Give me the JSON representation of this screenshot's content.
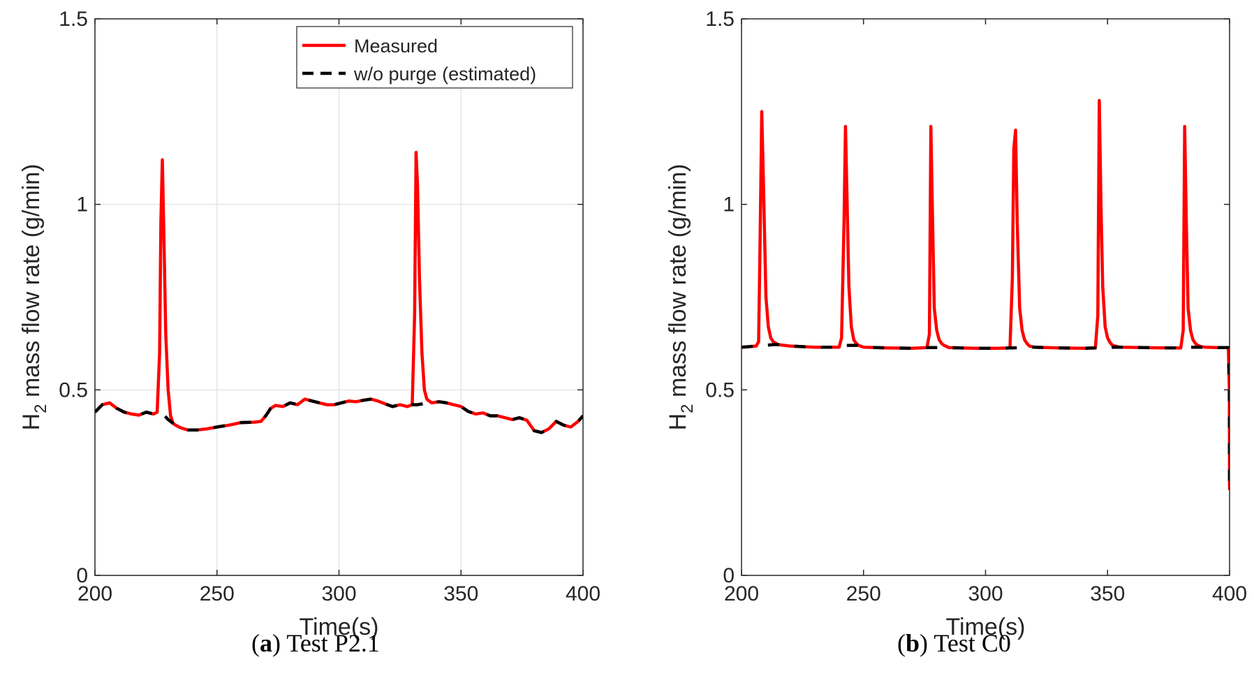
{
  "chart_data": [
    {
      "type": "line",
      "caption": {
        "letter": "a",
        "text": "Test P2.1"
      },
      "xlabel": "Time(s)",
      "ylabel": {
        "prefix": "H",
        "subscript": "2",
        "rest": " mass flow rate (g/min)"
      },
      "xlim": [
        200,
        400
      ],
      "ylim": [
        0,
        1.5
      ],
      "xticks": [
        "200",
        "250",
        "300",
        "350",
        "400"
      ],
      "yticks": [
        "0",
        "0.5",
        "1",
        "1.5"
      ],
      "grid": true,
      "legend_position": "top-right",
      "series": [
        {
          "name": "Measured",
          "color": "#ff0000",
          "style": "solid",
          "x": [
            200,
            203,
            206,
            209,
            212,
            215,
            218,
            221,
            224,
            225.5,
            226.5,
            227,
            227.6,
            228.3,
            229,
            230,
            231,
            232,
            233,
            235,
            238,
            242,
            246,
            250,
            255,
            260,
            265,
            268,
            270,
            272,
            274,
            277,
            280,
            283,
            286,
            289,
            292,
            295,
            298,
            301,
            304,
            307,
            310,
            313,
            316,
            319,
            322,
            325,
            328,
            330,
            331,
            331.6,
            332.2,
            333,
            334,
            335,
            336,
            337,
            338,
            341,
            344,
            347,
            350,
            353,
            356,
            359,
            362,
            365,
            368,
            371,
            374,
            377,
            380,
            383,
            386,
            389,
            392,
            395,
            398,
            400
          ],
          "y": [
            0.44,
            0.46,
            0.465,
            0.45,
            0.44,
            0.435,
            0.432,
            0.44,
            0.435,
            0.44,
            0.6,
            0.95,
            1.12,
            0.9,
            0.65,
            0.5,
            0.43,
            0.41,
            0.405,
            0.398,
            0.392,
            0.392,
            0.395,
            0.4,
            0.405,
            0.412,
            0.413,
            0.415,
            0.43,
            0.45,
            0.458,
            0.455,
            0.465,
            0.46,
            0.475,
            0.47,
            0.465,
            0.46,
            0.46,
            0.465,
            0.47,
            0.468,
            0.472,
            0.475,
            0.47,
            0.462,
            0.455,
            0.46,
            0.455,
            0.46,
            0.7,
            1.14,
            1.05,
            0.8,
            0.6,
            0.5,
            0.475,
            0.47,
            0.465,
            0.468,
            0.465,
            0.46,
            0.455,
            0.442,
            0.435,
            0.438,
            0.43,
            0.43,
            0.425,
            0.42,
            0.425,
            0.418,
            0.39,
            0.385,
            0.395,
            0.415,
            0.405,
            0.4,
            0.415,
            0.43
          ]
        },
        {
          "name": "w/o purge (estimated)",
          "color": "#000000",
          "style": "dashed",
          "x": [
            200,
            203,
            206,
            209,
            212,
            215,
            218,
            221,
            224,
            226,
            226.5,
            227.6,
            230,
            232,
            233,
            235,
            238,
            242,
            246,
            250,
            255,
            260,
            265,
            268,
            270,
            272,
            274,
            277,
            280,
            283,
            286,
            289,
            292,
            295,
            298,
            301,
            304,
            307,
            310,
            313,
            316,
            319,
            322,
            325,
            328,
            330,
            332,
            334,
            336,
            337,
            338,
            341,
            344,
            347,
            350,
            353,
            356,
            359,
            362,
            365,
            368,
            371,
            374,
            377,
            380,
            383,
            386,
            389,
            392,
            395,
            398,
            400
          ],
          "y": [
            0.44,
            0.46,
            0.465,
            0.45,
            0.44,
            0.435,
            0.432,
            0.44,
            0.435,
            0.44,
            0.437,
            0.437,
            0.42,
            0.41,
            0.405,
            0.398,
            0.392,
            0.392,
            0.395,
            0.4,
            0.405,
            0.412,
            0.413,
            0.415,
            0.43,
            0.45,
            0.458,
            0.455,
            0.465,
            0.46,
            0.475,
            0.47,
            0.465,
            0.46,
            0.46,
            0.465,
            0.47,
            0.468,
            0.472,
            0.475,
            0.47,
            0.462,
            0.455,
            0.46,
            0.455,
            0.46,
            0.46,
            0.462,
            0.465,
            0.47,
            0.465,
            0.468,
            0.465,
            0.46,
            0.455,
            0.442,
            0.435,
            0.438,
            0.43,
            0.43,
            0.425,
            0.42,
            0.425,
            0.418,
            0.39,
            0.385,
            0.395,
            0.415,
            0.405,
            0.4,
            0.415,
            0.43
          ]
        }
      ]
    },
    {
      "type": "line",
      "caption": {
        "letter": "b",
        "text": "Test C0"
      },
      "xlabel": "Time(s)",
      "ylabel": {
        "prefix": "H",
        "subscript": "2",
        "rest": " mass flow rate (g/min)"
      },
      "xlim": [
        200,
        400
      ],
      "ylim": [
        0,
        1.5
      ],
      "xticks": [
        "200",
        "250",
        "300",
        "350",
        "400"
      ],
      "yticks": [
        "0",
        "0.5",
        "1",
        "1.5"
      ],
      "grid": false,
      "series": [
        {
          "name": "Measured",
          "color": "#ff0000",
          "style": "solid",
          "x": [
            200,
            206,
            207,
            207.6,
            208.3,
            209,
            210,
            211,
            212,
            213,
            215,
            220,
            230,
            240,
            241,
            242,
            242.6,
            243.3,
            244,
            245,
            246,
            247,
            248,
            250,
            260,
            270,
            276,
            277,
            277.6,
            278.3,
            279,
            280,
            281,
            282,
            283,
            285,
            295,
            305,
            310,
            311,
            311.6,
            312.3,
            313,
            314,
            315,
            316,
            317,
            318,
            320,
            330,
            340,
            345,
            346,
            346.6,
            347.3,
            348,
            349,
            350,
            351,
            352,
            353,
            355,
            365,
            375,
            380,
            381,
            381.6,
            382.3,
            383,
            384,
            385,
            386,
            387,
            388,
            390,
            395,
            399.5,
            399.9,
            400
          ],
          "y": [
            0.615,
            0.618,
            0.63,
            0.9,
            1.25,
            1.05,
            0.75,
            0.67,
            0.64,
            0.63,
            0.622,
            0.618,
            0.615,
            0.615,
            0.64,
            0.95,
            1.21,
            1.0,
            0.78,
            0.67,
            0.635,
            0.625,
            0.62,
            0.615,
            0.613,
            0.612,
            0.614,
            0.65,
            1.21,
            0.95,
            0.72,
            0.66,
            0.635,
            0.625,
            0.62,
            0.614,
            0.612,
            0.612,
            0.613,
            0.8,
            1.15,
            1.2,
            0.95,
            0.72,
            0.66,
            0.635,
            0.625,
            0.618,
            0.615,
            0.613,
            0.612,
            0.613,
            0.7,
            1.28,
            1.0,
            0.78,
            0.67,
            0.64,
            0.628,
            0.62,
            0.618,
            0.615,
            0.614,
            0.613,
            0.613,
            0.66,
            1.21,
            0.95,
            0.72,
            0.66,
            0.635,
            0.625,
            0.62,
            0.617,
            0.615,
            0.614,
            0.614,
            0.5,
            0.23
          ]
        },
        {
          "name": "w/o purge (estimated)",
          "color": "#000000",
          "style": "dashed",
          "x": [
            200,
            206,
            207,
            213,
            215,
            220,
            230,
            240,
            241,
            248,
            250,
            260,
            270,
            276,
            277,
            283,
            285,
            295,
            305,
            310,
            311,
            318,
            320,
            330,
            340,
            345,
            346,
            353,
            355,
            365,
            375,
            380,
            381,
            388,
            390,
            395,
            399.5,
            399.9,
            400
          ],
          "y": [
            0.615,
            0.618,
            0.618,
            0.622,
            0.622,
            0.618,
            0.615,
            0.615,
            0.62,
            0.62,
            0.615,
            0.613,
            0.612,
            0.614,
            0.614,
            0.614,
            0.614,
            0.612,
            0.612,
            0.613,
            0.613,
            0.615,
            0.615,
            0.613,
            0.612,
            0.613,
            0.613,
            0.615,
            0.615,
            0.614,
            0.613,
            0.613,
            0.615,
            0.615,
            0.615,
            0.614,
            0.614,
            0.5,
            0.23
          ]
        }
      ]
    }
  ]
}
